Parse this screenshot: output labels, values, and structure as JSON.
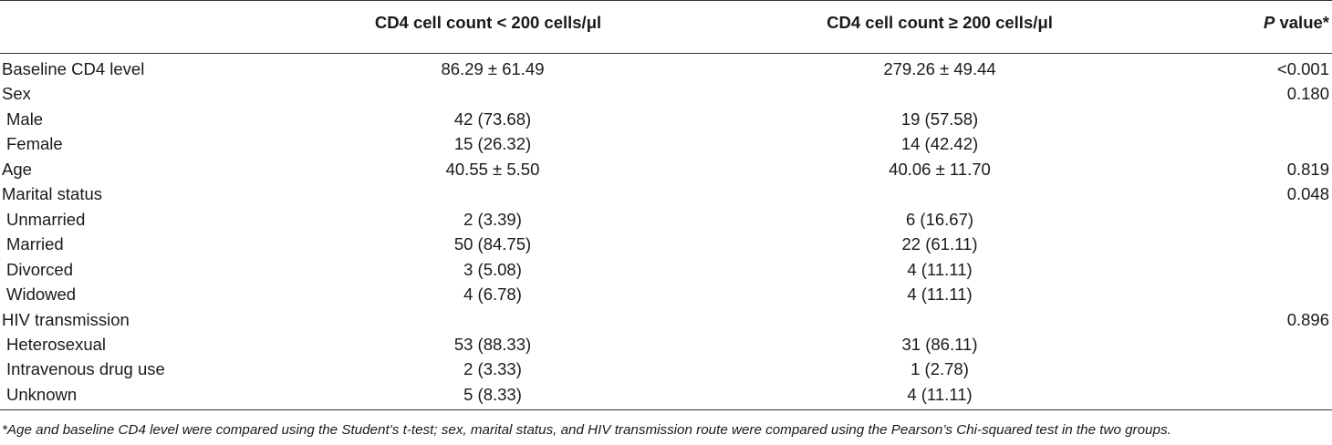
{
  "table": {
    "header": {
      "low": "CD4 cell count < 200 cells/μl",
      "high": "CD4 cell count ≥ 200 cells/μl",
      "p_value": [
        "P",
        "value*"
      ]
    },
    "variables": [
      {
        "label": "Baseline CD4 level",
        "low": "86.29 ± 61.49",
        "high": "279.26 ± 49.44",
        "p": "<0.001"
      },
      {
        "label": "Sex",
        "p": "0.180",
        "levels": [
          {
            "label": "Male",
            "low": "42 (73.68)",
            "high": "19 (57.58)"
          },
          {
            "label": "Female",
            "low": "15 (26.32)",
            "high": "14 (42.42)"
          }
        ]
      },
      {
        "label": "Age",
        "low": "40.55 ± 5.50",
        "high": "40.06 ± 11.70",
        "p": "0.819"
      },
      {
        "label": "Marital status",
        "p": "0.048",
        "levels": [
          {
            "label": "Unmarried",
            "low": "2 (3.39)",
            "high": "6 (16.67)"
          },
          {
            "label": "Married",
            "low": "50 (84.75)",
            "high": "22 (61.11)"
          },
          {
            "label": "Divorced",
            "low": "3 (5.08)",
            "high": "4 (11.11)"
          },
          {
            "label": "Widowed",
            "low": "4 (6.78)",
            "high": "4 (11.11)"
          }
        ]
      },
      {
        "label": "HIV transmission",
        "p": "0.896",
        "levels": [
          {
            "label": "Heterosexual",
            "low": "53 (88.33)",
            "high": "31 (86.11)"
          },
          {
            "label": "Intravenous drug use",
            "low": "2 (3.33)",
            "high": "1 (2.78)"
          },
          {
            "label": "Unknown",
            "low": "5 (8.33)",
            "high": "4 (11.11)"
          }
        ]
      }
    ],
    "footnote": "*Age and baseline CD4 level were compared using the Student’s t-test; sex, marital status, and HIV transmission route were compared using the Pearson’s Chi-squared test in the two groups."
  }
}
